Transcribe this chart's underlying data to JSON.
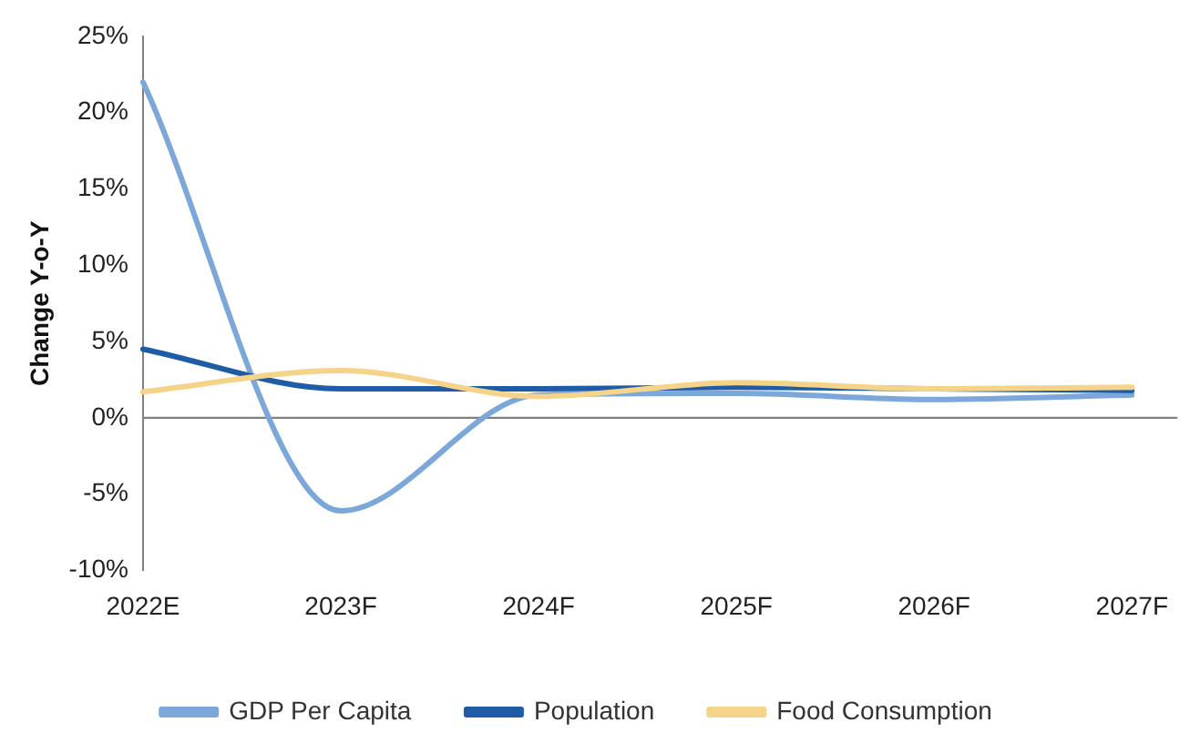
{
  "chart_data": {
    "type": "line",
    "ylabel": "Change Y-o-Y",
    "categories": [
      "2022E",
      "2023F",
      "2024F",
      "2025F",
      "2026F",
      "2027F"
    ],
    "series": [
      {
        "name": "GDP Per Capita",
        "color": "#7ba7d9",
        "values": [
          22,
          -6.1,
          1.5,
          1.6,
          1.2,
          1.5
        ]
      },
      {
        "name": "Population",
        "color": "#1f5ca8",
        "values": [
          4.5,
          1.9,
          1.9,
          2.0,
          1.9,
          1.8
        ]
      },
      {
        "name": "Food Consumption",
        "color": "#f5d48a",
        "values": [
          1.7,
          3.1,
          1.4,
          2.3,
          1.9,
          2.0
        ]
      }
    ],
    "ylim": [
      -10,
      25
    ],
    "yticks": [
      {
        "value": -10,
        "label": "-10%"
      },
      {
        "value": -5,
        "label": "-5%"
      },
      {
        "value": 0,
        "label": "0%"
      },
      {
        "value": 5,
        "label": "5%"
      },
      {
        "value": 10,
        "label": "10%"
      },
      {
        "value": 15,
        "label": "15%"
      },
      {
        "value": 20,
        "label": "20%"
      },
      {
        "value": 25,
        "label": "25%"
      }
    ],
    "ref_lines": [
      {
        "axis": "y",
        "value": 0,
        "color": "#808080"
      }
    ],
    "grid": false,
    "legend": "bottom",
    "marker": "none",
    "line_style": "solid"
  }
}
